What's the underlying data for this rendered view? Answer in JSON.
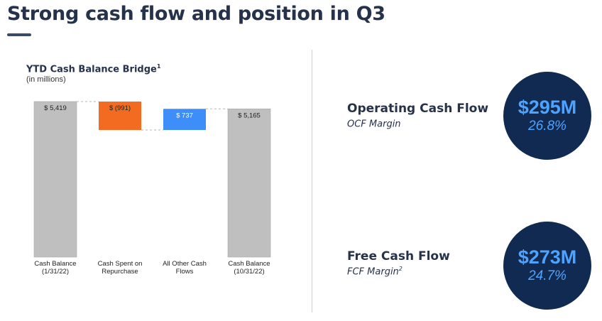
{
  "slide": {
    "title": "Strong cash flow and position in Q3"
  },
  "chart_data": {
    "type": "bar",
    "subtype": "waterfall",
    "title": "YTD Cash Balance Bridge",
    "title_footnote": "1",
    "subtitle": "(in millions)",
    "categories": [
      [
        "Cash Balance",
        "(1/31/22)"
      ],
      [
        "Cash Spent on",
        "Repurchase"
      ],
      [
        "All Other Cash",
        "Flows"
      ],
      [
        "Cash Balance",
        "(10/31/22)"
      ]
    ],
    "values": [
      5419,
      -991,
      737,
      5165
    ],
    "kinds": [
      "total",
      "delta",
      "delta",
      "total"
    ],
    "data_labels": [
      "$ 5,419",
      "$ (991)",
      "$ 737",
      "$ 5,165"
    ],
    "colors": [
      "#bfbfbf",
      "#f26b21",
      "#3d8ef8",
      "#bfbfbf"
    ],
    "connector_lines": "dashed",
    "grid": false,
    "legend": "none"
  },
  "metrics": [
    {
      "label": "Operating Cash Flow",
      "sub_label": "OCF Margin",
      "sub_footnote": "",
      "value": "$295M",
      "percent": "26.8%"
    },
    {
      "label": "Free Cash Flow",
      "sub_label": "FCF Margin",
      "sub_footnote": "2",
      "value": "$273M",
      "percent": "24.7%"
    }
  ],
  "colors": {
    "circle_bg": "#112a52",
    "circle_text": "#4ea3ff",
    "heading": "#26324a"
  }
}
